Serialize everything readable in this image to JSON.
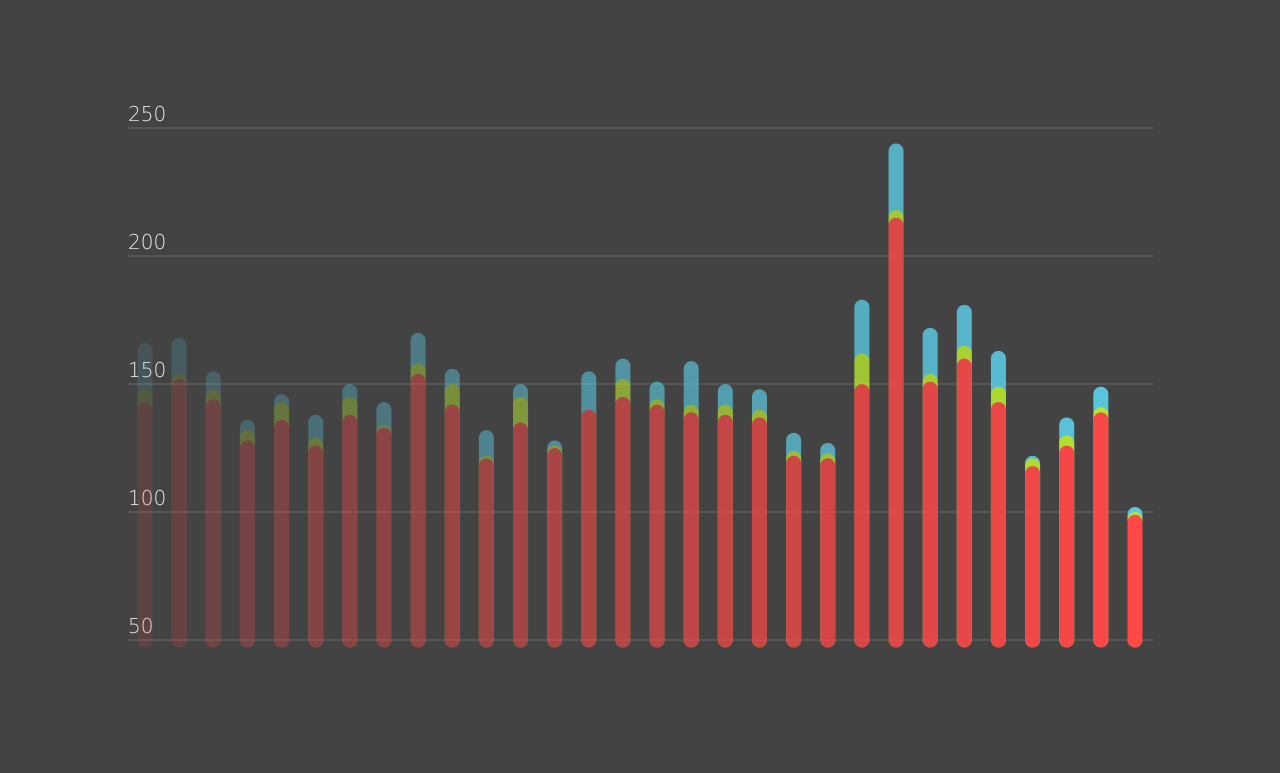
{
  "chart_data": {
    "type": "bar",
    "y_ticks": [
      50,
      100,
      150,
      200,
      250
    ],
    "ylim": [
      50,
      250
    ],
    "grid": true,
    "series_colors": {
      "blue": "#5bc8e0",
      "green": "#b8e830",
      "red": "#ff4848"
    },
    "series": [
      {
        "name": "",
        "color_key": "blue",
        "values": [
          163,
          165,
          152,
          133,
          143,
          135,
          147,
          140,
          167,
          153,
          129,
          147,
          125,
          152,
          157,
          148,
          156,
          147,
          145,
          128,
          124,
          180,
          241,
          169,
          178,
          160,
          119,
          134,
          146,
          99
        ]
      },
      {
        "name": "",
        "color_key": "green",
        "values": [
          145,
          151,
          145,
          129,
          140,
          126,
          142,
          131,
          155,
          147,
          119,
          142,
          123,
          137,
          149,
          141,
          139,
          139,
          137,
          121,
          120,
          159,
          215,
          151,
          162,
          146,
          118,
          127,
          138,
          97
        ]
      },
      {
        "name": "",
        "color_key": "red",
        "values": [
          140,
          149,
          141,
          125,
          133,
          123,
          135,
          130,
          151,
          139,
          118,
          132,
          122,
          137,
          142,
          139,
          136,
          135,
          134,
          119,
          118,
          147,
          212,
          148,
          157,
          140,
          115,
          123,
          136,
          96
        ]
      }
    ]
  }
}
